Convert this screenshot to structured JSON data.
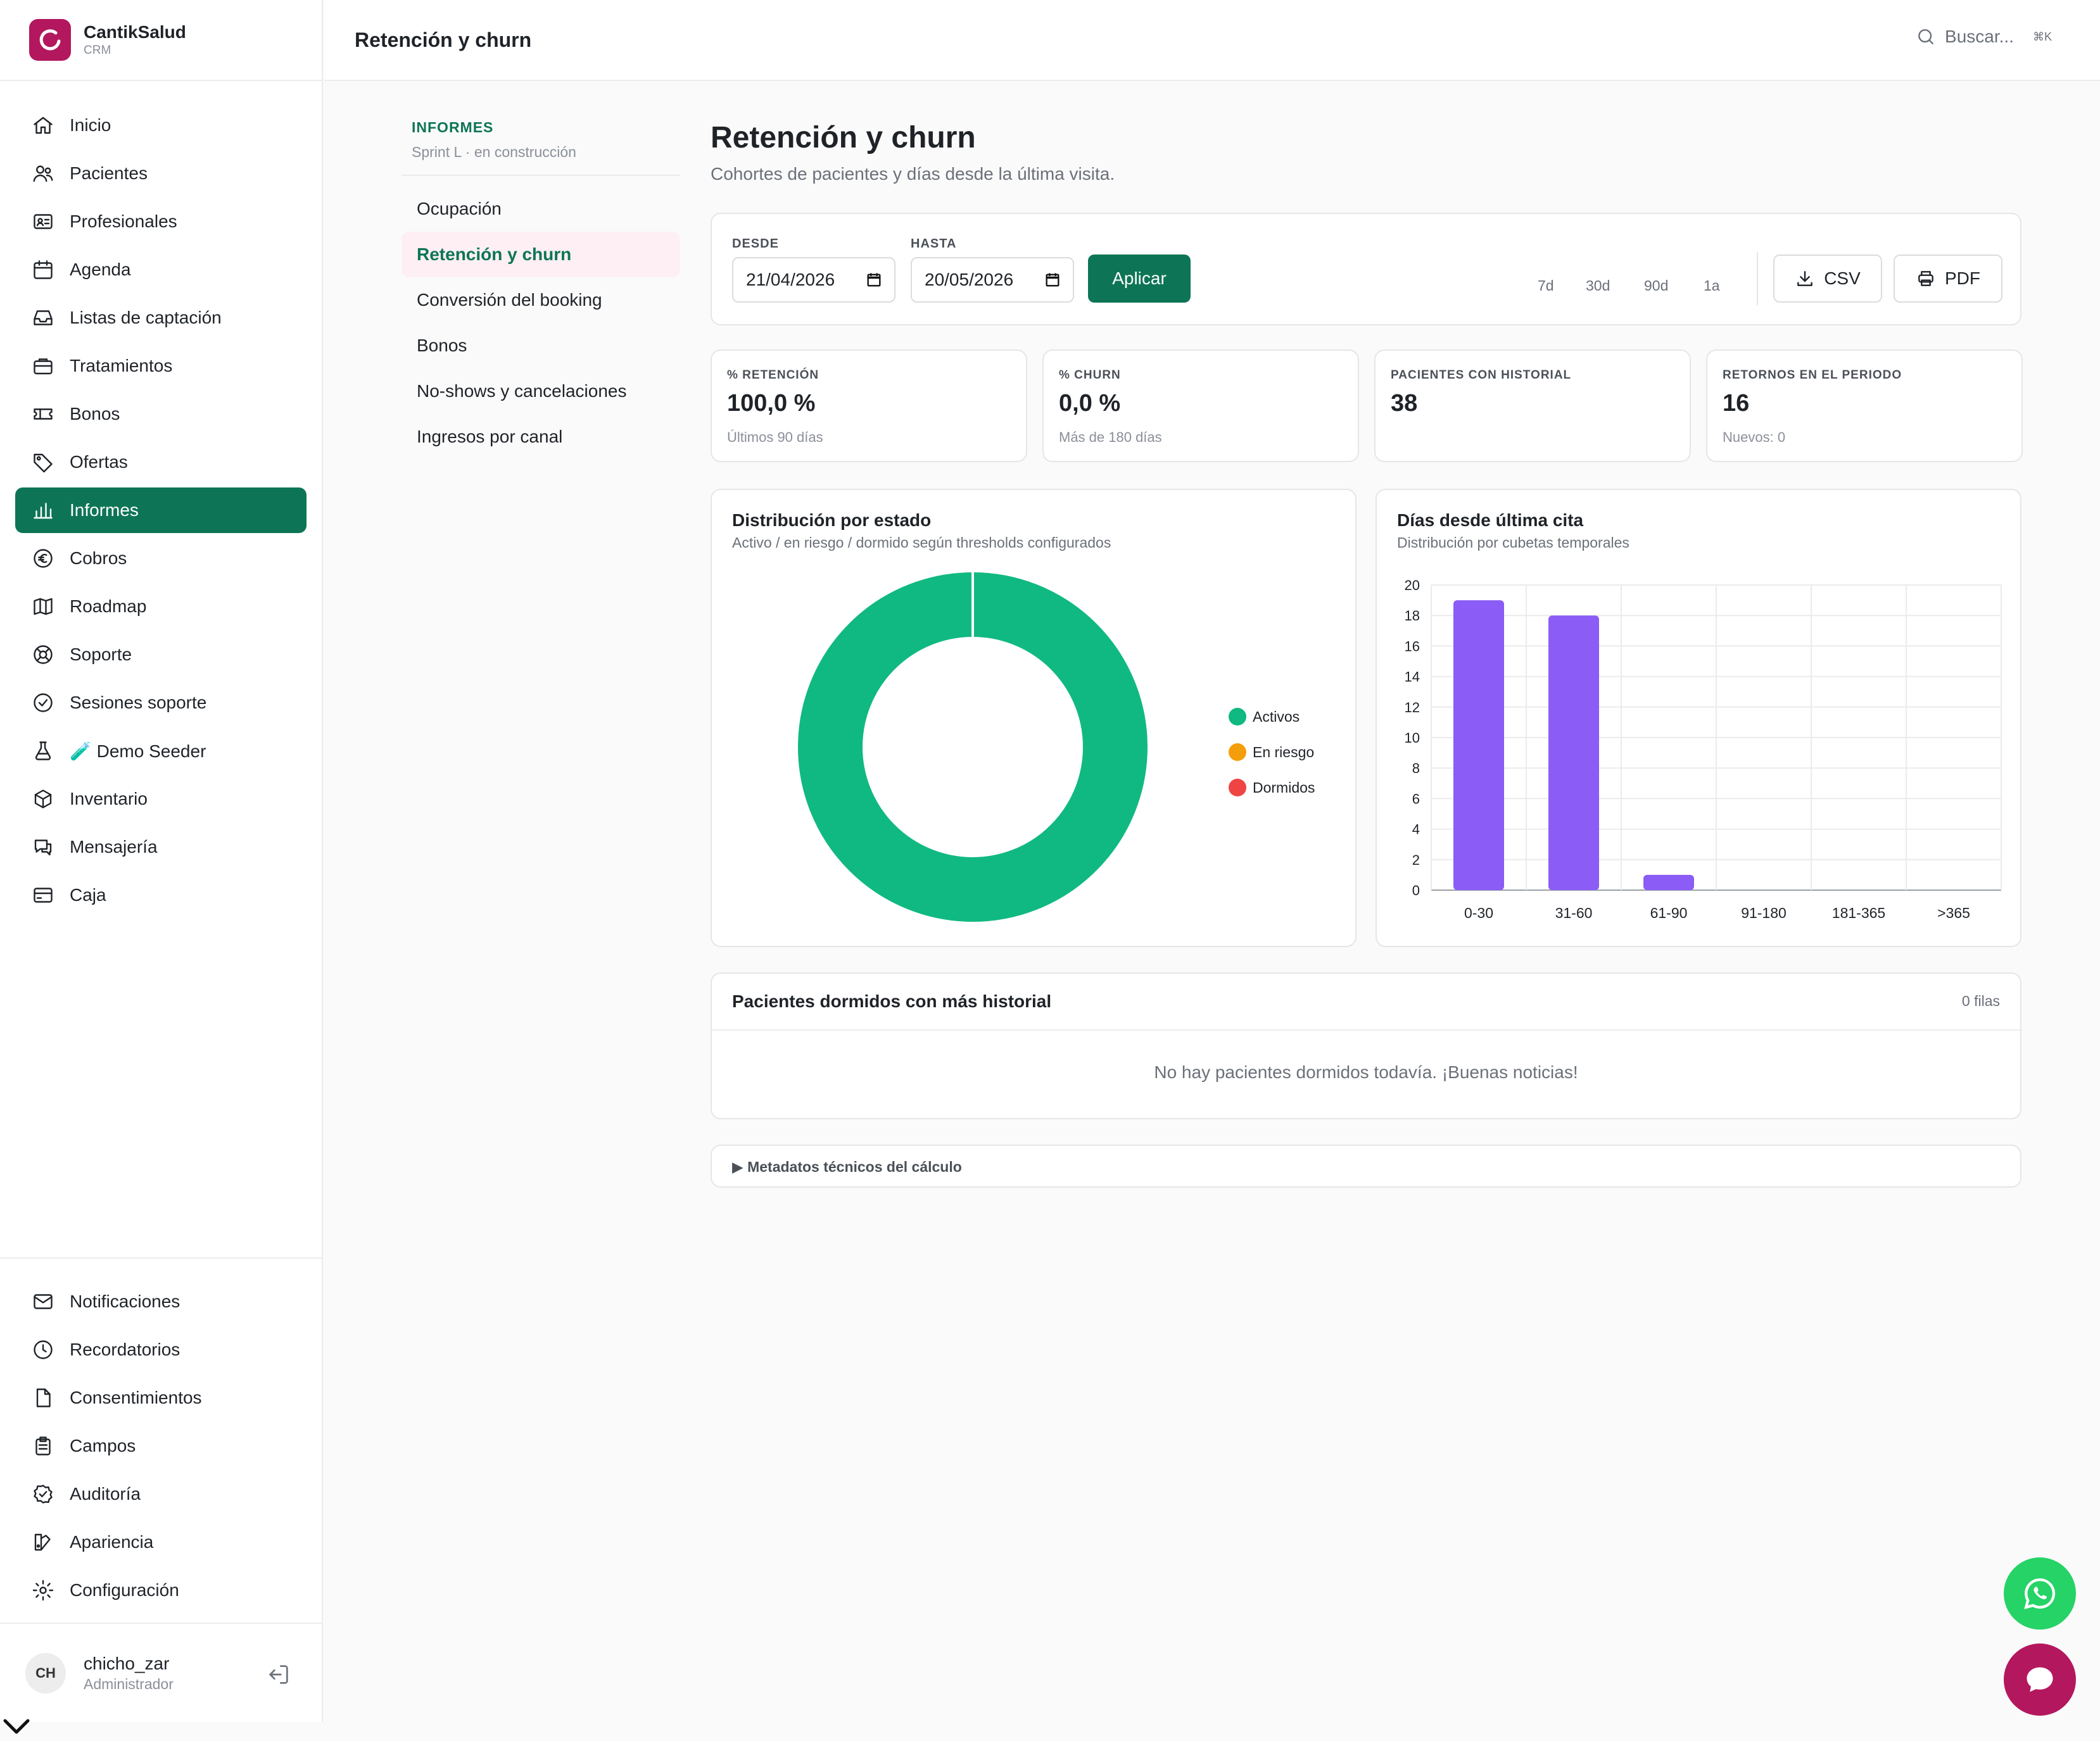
{
  "app": {
    "name": "CantikSalud",
    "sub": "CRM"
  },
  "header": {
    "title": "Retención y churn",
    "search_placeholder": "Buscar...",
    "shortcut": "⌘K"
  },
  "sidebar": {
    "items": [
      {
        "label": "Inicio",
        "icon": "home-icon"
      },
      {
        "label": "Pacientes",
        "icon": "users-icon"
      },
      {
        "label": "Profesionales",
        "icon": "id-card-icon"
      },
      {
        "label": "Agenda",
        "icon": "calendar-icon"
      },
      {
        "label": "Listas de captación",
        "icon": "inbox-icon"
      },
      {
        "label": "Tratamientos",
        "icon": "briefcase-icon"
      },
      {
        "label": "Bonos",
        "icon": "ticket-icon"
      },
      {
        "label": "Ofertas",
        "icon": "tag-icon"
      },
      {
        "label": "Informes",
        "icon": "bar-chart-icon"
      },
      {
        "label": "Cobros",
        "icon": "euro-icon"
      },
      {
        "label": "Roadmap",
        "icon": "map-icon"
      },
      {
        "label": "Soporte",
        "icon": "lifebuoy-icon"
      },
      {
        "label": "Sesiones soporte",
        "icon": "shield-check-icon"
      },
      {
        "label": "🧪 Demo Seeder",
        "icon": "flask-icon"
      },
      {
        "label": "Inventario",
        "icon": "box-icon"
      },
      {
        "label": "Mensajería",
        "icon": "chat-icon"
      },
      {
        "label": "Caja",
        "icon": "credit-card-icon"
      }
    ],
    "bottom_items": [
      {
        "label": "Notificaciones",
        "icon": "mail-icon"
      },
      {
        "label": "Recordatorios",
        "icon": "clock-icon"
      },
      {
        "label": "Consentimientos",
        "icon": "file-icon"
      },
      {
        "label": "Campos",
        "icon": "clipboard-icon"
      },
      {
        "label": "Auditoría",
        "icon": "check-badge-icon"
      },
      {
        "label": "Apariencia",
        "icon": "palette-icon"
      },
      {
        "label": "Configuración",
        "icon": "gear-icon"
      }
    ],
    "active_index": 8
  },
  "user": {
    "initials": "CH",
    "name": "chicho_zar",
    "role": "Administrador"
  },
  "subnav": {
    "title": "INFORMES",
    "subtitle": "Sprint L · en construcción",
    "items": [
      "Ocupación",
      "Retención y churn",
      "Conversión del booking",
      "Bonos",
      "No-shows y cancelaciones",
      "Ingresos por canal"
    ],
    "active_index": 1
  },
  "page": {
    "title": "Retención y churn",
    "subtitle": "Cohortes de pacientes y días desde la última visita."
  },
  "filters": {
    "from_label": "DESDE",
    "from_value": "21/04/2026",
    "to_label": "HASTA",
    "to_value": "20/05/2026",
    "apply_label": "Aplicar",
    "quick_ranges": [
      "7d",
      "30d",
      "90d",
      "1a"
    ],
    "csv_label": "CSV",
    "pdf_label": "PDF"
  },
  "kpis": [
    {
      "label": "% RETENCIÓN",
      "value": "100,0 %",
      "note": "Últimos 90 días"
    },
    {
      "label": "% CHURN",
      "value": "0,0 %",
      "note": "Más de 180 días"
    },
    {
      "label": "PACIENTES CON HISTORIAL",
      "value": "38",
      "note": ""
    },
    {
      "label": "RETORNOS EN EL PERIODO",
      "value": "16",
      "note": "Nuevos: 0"
    }
  ],
  "colors": {
    "primary": "#0d7555",
    "brand": "#b3175e",
    "active": "#10b981",
    "risk": "#f59e0b",
    "dormant": "#ef4444",
    "bar": "#8b5cf6",
    "whatsapp": "#25d366"
  },
  "chart_data": [
    {
      "type": "pie",
      "title": "Distribución por estado",
      "subtitle": "Activo / en riesgo / dormido según thresholds configurados",
      "categories": [
        "Activos",
        "En riesgo",
        "Dormidos"
      ],
      "values": [
        38,
        0,
        0
      ],
      "donut": true,
      "legend": "right"
    },
    {
      "type": "bar",
      "title": "Días desde última cita",
      "subtitle": "Distribución por cubetas temporales",
      "categories": [
        "0-30",
        "31-60",
        "61-90",
        "91-180",
        "181-365",
        ">365"
      ],
      "values": [
        19,
        18,
        1,
        0,
        0,
        0
      ],
      "ylim": [
        0,
        20
      ],
      "yticks": [
        0,
        2,
        4,
        6,
        8,
        10,
        12,
        14,
        16,
        18,
        20
      ],
      "grid": true
    }
  ],
  "table": {
    "title": "Pacientes dormidos con más historial",
    "count": "0 filas",
    "empty": "No hay pacientes dormidos todavía. ¡Buenas noticias!"
  },
  "meta": {
    "label": "▶ Metadatos técnicos del cálculo"
  }
}
